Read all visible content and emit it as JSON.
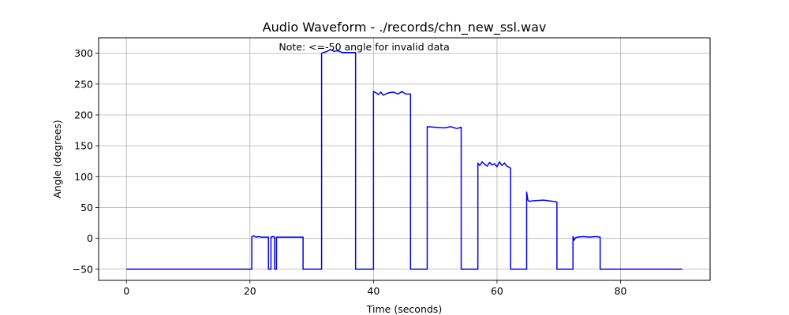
{
  "chart_data": {
    "type": "line",
    "title": "Audio Waveform - ./records/chn_new_ssl.wav",
    "xlabel": "Time (seconds)",
    "ylabel": "Angle (degrees)",
    "annotation": {
      "text": "Note: <=-50 angle for invalid data",
      "x": 38.5,
      "y": 310,
      "color": "#ff0000"
    },
    "xlim": [
      -4.5,
      94.5
    ],
    "ylim": [
      -68,
      325
    ],
    "xticks": [
      0,
      20,
      40,
      60,
      80
    ],
    "yticks": [
      -50,
      0,
      50,
      100,
      150,
      200,
      250,
      300
    ],
    "grid": true,
    "series": [
      {
        "color": "#0000ff",
        "x": [
          0,
          20.3,
          20.3,
          20.6,
          21.0,
          21.4,
          21.8,
          22.2,
          22.7,
          23.0,
          23.0,
          23.4,
          23.4,
          23.7,
          24.0,
          24.0,
          24.3,
          24.3,
          28.6,
          28.6,
          31.6,
          31.6,
          32.5,
          33.0,
          33.6,
          34.2,
          35.0,
          37.1,
          37.1,
          40.0,
          40.0,
          40.4,
          40.8,
          41.2,
          41.6,
          42.0,
          42.5,
          43.2,
          44.0,
          44.6,
          45.2,
          46.0,
          46.0,
          48.7,
          48.7,
          50.0,
          51.5,
          52.5,
          53.5,
          54.2,
          54.2,
          56.9,
          56.9,
          57.2,
          57.6,
          58.0,
          58.4,
          58.8,
          59.2,
          59.6,
          60.0,
          60.4,
          60.8,
          61.2,
          61.6,
          62.2,
          62.2,
          64.8,
          64.8,
          65.0,
          65.2,
          66.0,
          67.5,
          69.0,
          69.7,
          69.7,
          72.3,
          72.3,
          72.5,
          72.7,
          73.0,
          74.0,
          75.0,
          76.0,
          76.7,
          76.7,
          90
        ],
        "y": [
          -50,
          -50,
          3,
          4,
          2,
          3,
          2,
          2,
          2,
          2,
          -50,
          -50,
          2,
          3,
          2,
          -50,
          -50,
          2,
          2,
          -50,
          -50,
          300,
          303,
          306,
          303,
          304,
          301,
          301,
          -50,
          -50,
          238,
          236,
          233,
          237,
          232,
          234,
          236,
          237,
          234,
          238,
          234,
          234,
          -50,
          -50,
          181,
          180,
          179,
          181,
          178,
          180,
          -50,
          -50,
          122,
          118,
          124,
          120,
          117,
          123,
          119,
          121,
          116,
          124,
          118,
          122,
          117,
          114,
          -50,
          -50,
          75,
          62,
          60,
          61,
          62,
          60,
          59,
          -50,
          -50,
          3,
          -3,
          1,
          2,
          3,
          2,
          3,
          2,
          -50,
          -50
        ]
      }
    ]
  }
}
